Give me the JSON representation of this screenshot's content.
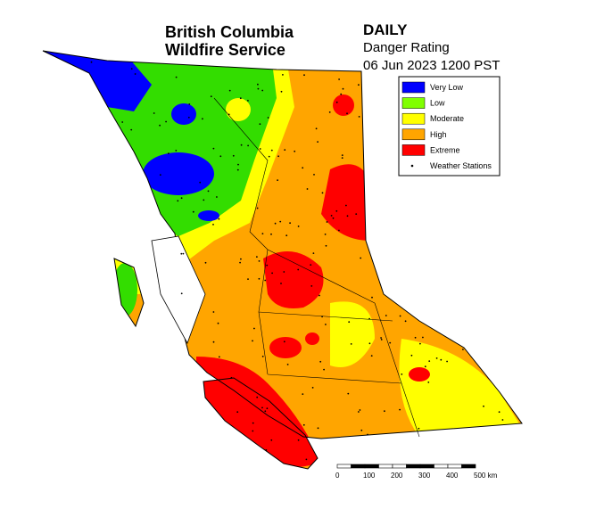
{
  "header": {
    "title_lines": [
      "British Columbia",
      "Wildfire Service"
    ],
    "product": "DAILY",
    "subtitle": "Danger Rating",
    "timestamp": "06 Jun 2023 1200 PST"
  },
  "legend": [
    {
      "label": "Very Low",
      "color": "#0000ff",
      "marker": "square"
    },
    {
      "label": "Low",
      "color": "#80ff00",
      "marker": "square"
    },
    {
      "label": "Moderate",
      "color": "#ffff00",
      "marker": "square"
    },
    {
      "label": "High",
      "color": "#ffa500",
      "marker": "square"
    },
    {
      "label": "Extreme",
      "color": "#ff0000",
      "marker": "square"
    },
    {
      "label": "Weather Stations",
      "color": "#000000",
      "marker": "dot"
    }
  ],
  "scale_bar": {
    "labels": [
      "0",
      "100",
      "200",
      "300",
      "400",
      "500 km"
    ]
  }
}
